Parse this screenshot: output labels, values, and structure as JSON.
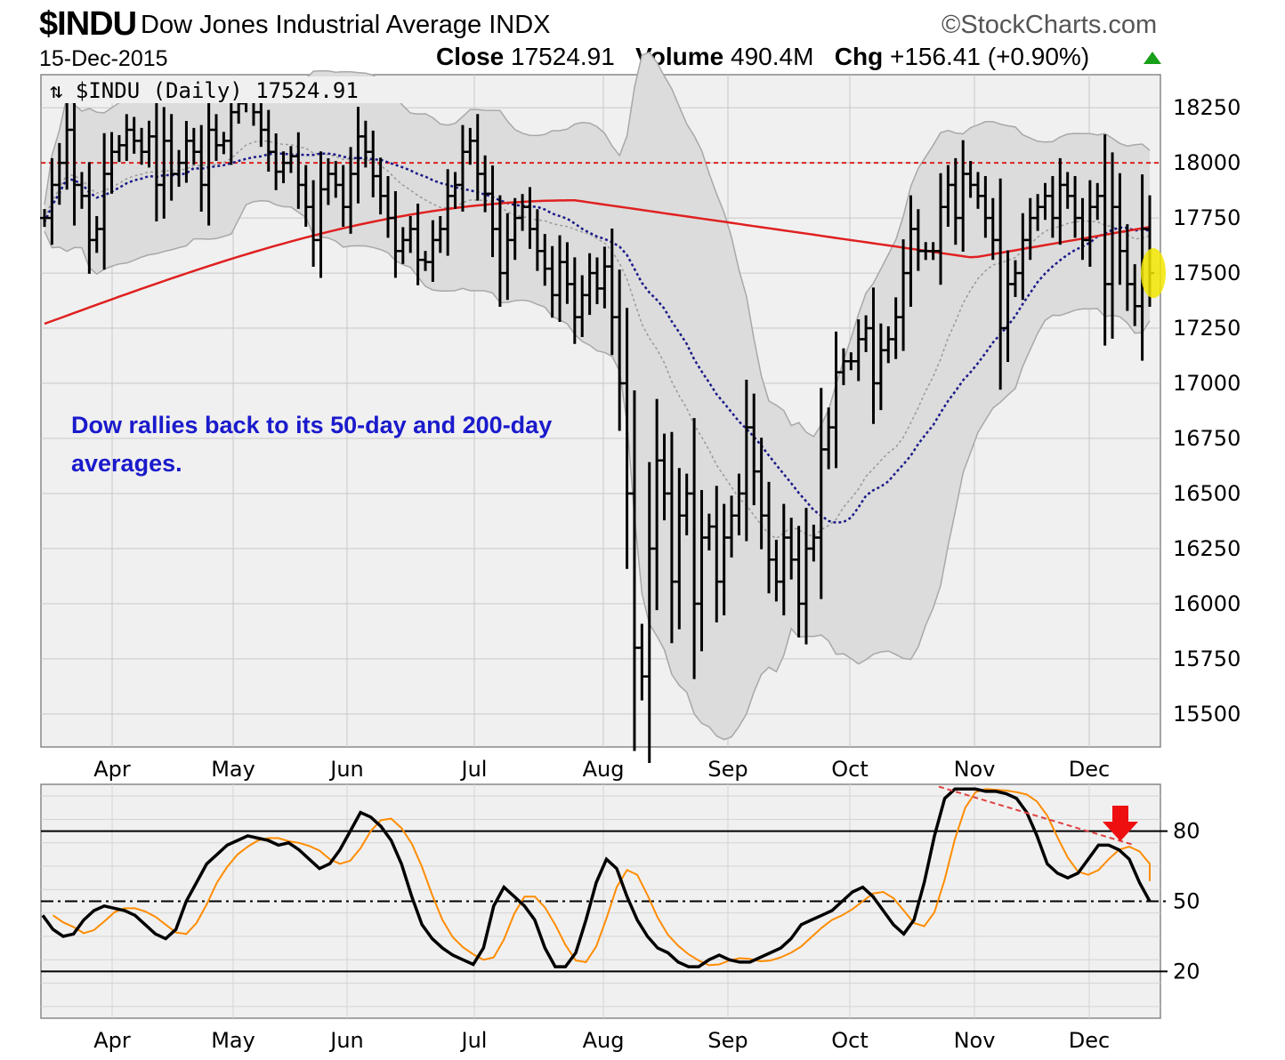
{
  "header": {
    "symbol": "$INDU",
    "name": "Dow Jones Industrial Average",
    "exchange": "INDX",
    "brand": "StockCharts.com",
    "date": "15-Dec-2015",
    "close_label": "Close",
    "close_value": "17524.91",
    "volume_label": "Volume",
    "volume_value": "490.4M",
    "chg_label": "Chg",
    "chg_value": "+156.41 (+0.90%)",
    "up_color": "#19a019"
  },
  "chart_data": [
    {
      "type": "ohlc",
      "legend": "$INDU (Daily) 17524.91",
      "annotation": "Dow rallies back to its 50-day and 200-day averages.",
      "annotation_color": "#1a1acc",
      "months": [
        "Apr",
        "May",
        "Jun",
        "Jul",
        "Aug",
        "Sep",
        "Oct",
        "Nov",
        "Dec"
      ],
      "yticks": [
        15500,
        15750,
        16000,
        16250,
        16500,
        16750,
        17000,
        17250,
        17500,
        17750,
        18000,
        18250
      ],
      "ylim": [
        15350,
        18400
      ],
      "resistance_level": 18000,
      "resistance_color": "#e02020",
      "ma200_color": "#e02020",
      "ma50_color": "#1a1a88",
      "ma20_color": "#999999",
      "highlight_color": "#f2e600",
      "closes": [
        17750,
        17900,
        18000,
        18150,
        17900,
        17850,
        17650,
        17700,
        17950,
        18050,
        18080,
        18150,
        18100,
        18050,
        18120,
        17900,
        18100,
        17950,
        18000,
        18100,
        18050,
        17900,
        18150,
        18080,
        18100,
        18230,
        18270,
        18285,
        18230,
        18150,
        18050,
        17960,
        18000,
        18030,
        17900,
        17800,
        17650,
        17880,
        17950,
        17900,
        17800,
        17950,
        18120,
        18050,
        17940,
        17850,
        17750,
        17600,
        17650,
        17700,
        17560,
        17550,
        17650,
        17700,
        17850,
        17900,
        18050,
        18100,
        17950,
        17860,
        17700,
        17500,
        17650,
        17750,
        17800,
        17700,
        17600,
        17520,
        17400,
        17550,
        17450,
        17300,
        17400,
        17500,
        17430,
        17530,
        17300,
        17000,
        16500,
        15800,
        15670,
        16250,
        16650,
        16500,
        16100,
        16400,
        16500,
        16000,
        16300,
        16350,
        16100,
        16300,
        16400,
        16500,
        16800,
        16600,
        16400,
        16200,
        16100,
        16300,
        16200,
        16000,
        16250,
        16300,
        16700,
        16800,
        17050,
        17100,
        17100,
        17200,
        17250,
        17000,
        17150,
        17200,
        17300,
        17500,
        17700,
        17600,
        17600,
        17600,
        17800,
        17900,
        17750,
        17950,
        17900,
        17850,
        17750,
        17650,
        17250,
        17450,
        17500,
        17650,
        17750,
        17800,
        17850,
        17750,
        17900,
        17850,
        17750,
        17650,
        17800,
        17850,
        17450,
        17800,
        17600,
        17450,
        17350,
        17700,
        17500
      ],
      "ohlc_bars": "one vertical high-low bar with left open tick and right close tick per trading day",
      "x_range": [
        "2015-03-13",
        "2015-12-15"
      ]
    },
    {
      "type": "line",
      "indicator": "slow stochastic",
      "yticks": [
        20,
        50,
        80
      ],
      "ylim": [
        0,
        100
      ],
      "fast_color": "#000000",
      "slow_color": "#ff8c00",
      "trendline_color": "#e04040",
      "arrow_color": "#ee1010",
      "fast_values": [
        44,
        38,
        35,
        36,
        42,
        46,
        48,
        47,
        46,
        44,
        40,
        36,
        34,
        38,
        50,
        58,
        66,
        70,
        74,
        76,
        78,
        77,
        76,
        74,
        75,
        72,
        68,
        64,
        66,
        72,
        80,
        88,
        86,
        82,
        76,
        66,
        52,
        40,
        34,
        30,
        27,
        25,
        23,
        30,
        48,
        56,
        52,
        48,
        42,
        30,
        22,
        22,
        28,
        42,
        58,
        68,
        64,
        52,
        42,
        35,
        30,
        28,
        24,
        22,
        22,
        25,
        27,
        25,
        24,
        24,
        26,
        28,
        30,
        34,
        40,
        42,
        44,
        46,
        50,
        54,
        56,
        52,
        46,
        40,
        36,
        42,
        58,
        78,
        94,
        98,
        98,
        98,
        97,
        97,
        96,
        94,
        88,
        78,
        66,
        62,
        60,
        62,
        68,
        74,
        74,
        72,
        68,
        58,
        50
      ]
    }
  ]
}
